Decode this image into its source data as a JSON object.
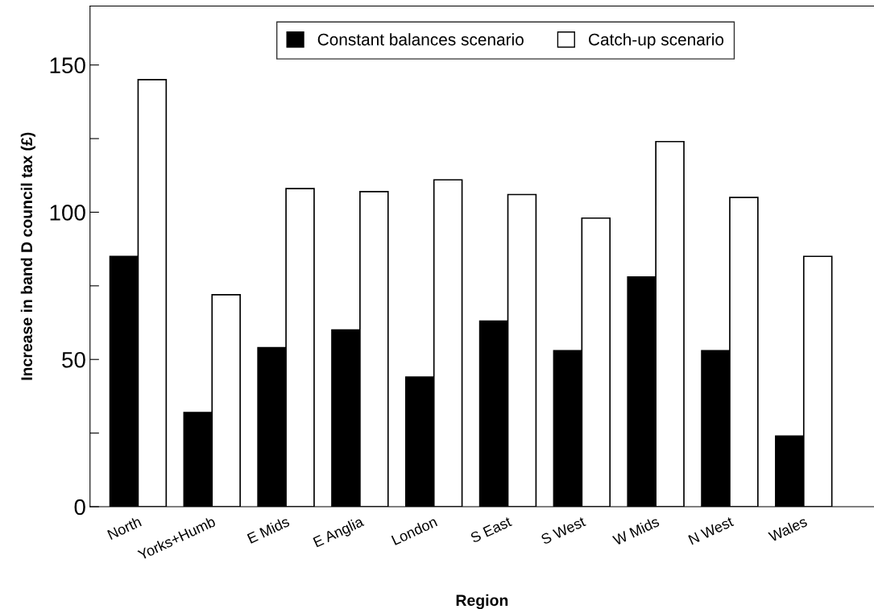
{
  "chart_data": {
    "type": "bar",
    "xlabel": "Region",
    "ylabel": "Increase in band D council tax (£)",
    "categories": [
      "North",
      "Yorks+Humb",
      "E Mids",
      "E Anglia",
      "London",
      "S East",
      "S West",
      "W Mids",
      "N West",
      "Wales"
    ],
    "series": [
      {
        "name": "Constant balances scenario",
        "color": "#000000",
        "values": [
          85,
          32,
          54,
          60,
          44,
          63,
          53,
          78,
          53,
          24
        ]
      },
      {
        "name": "Catch-up scenario",
        "color": "#ffffff",
        "values": [
          145,
          72,
          108,
          107,
          111,
          106,
          98,
          124,
          105,
          85
        ]
      }
    ],
    "ylim": [
      0,
      170
    ],
    "yticks": [
      0,
      {
        "value": 25,
        "label": null
      },
      50,
      {
        "value": 75,
        "label": null
      },
      100,
      {
        "value": 125,
        "label": null
      },
      150
    ],
    "grid": false,
    "legend": "top"
  }
}
